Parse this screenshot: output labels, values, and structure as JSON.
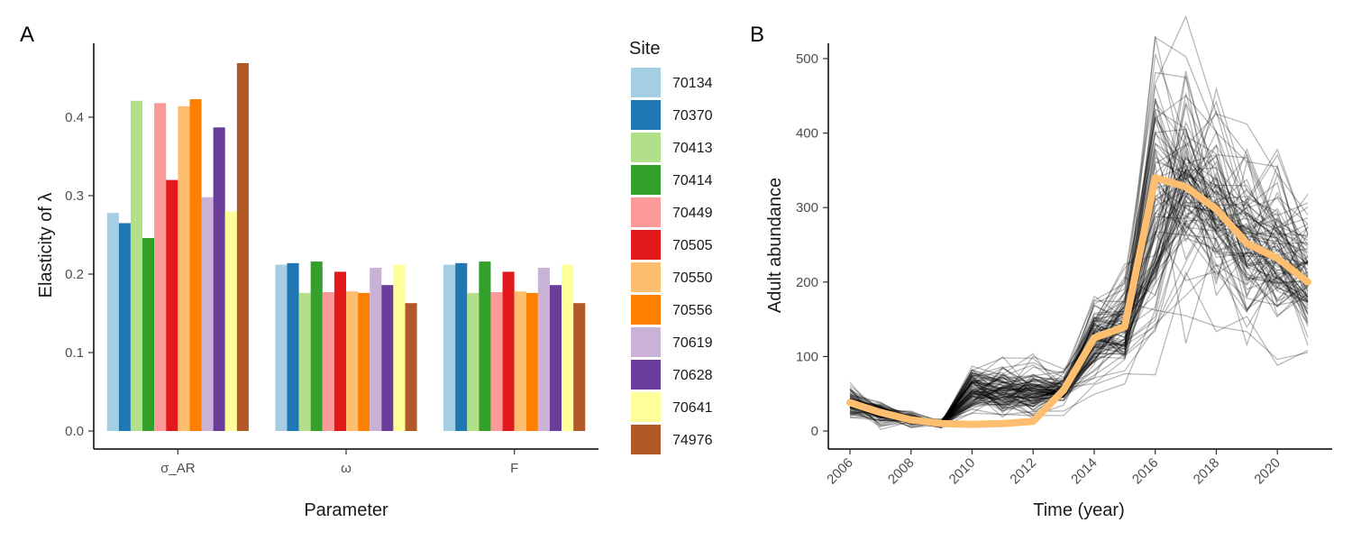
{
  "chart_data": [
    {
      "panel_label": "A",
      "type": "bar",
      "xlabel": "Parameter",
      "ylabel": "Elasticity of λ",
      "ylim": [
        0,
        0.5
      ],
      "yticks": [
        "0.0",
        "0.1",
        "0.2",
        "0.3",
        "0.4"
      ],
      "grid": false,
      "legend_title": "Site",
      "legend_position": "right",
      "categories": [
        "σ_AR",
        "ω",
        "F"
      ],
      "series": [
        {
          "name": "70134",
          "color": "#a6cee3",
          "values": [
            0.278,
            0.212,
            0.212
          ]
        },
        {
          "name": "70370",
          "color": "#1f78b4",
          "values": [
            0.265,
            0.214,
            0.214
          ]
        },
        {
          "name": "70413",
          "color": "#b2df8a",
          "values": [
            0.421,
            0.176,
            0.176
          ]
        },
        {
          "name": "70414",
          "color": "#33a02c",
          "values": [
            0.246,
            0.216,
            0.216
          ]
        },
        {
          "name": "70449",
          "color": "#fb9a99",
          "values": [
            0.418,
            0.177,
            0.177
          ]
        },
        {
          "name": "70505",
          "color": "#e31a1c",
          "values": [
            0.32,
            0.203,
            0.203
          ]
        },
        {
          "name": "70550",
          "color": "#fdbf6f",
          "values": [
            0.414,
            0.178,
            0.178
          ]
        },
        {
          "name": "70556",
          "color": "#ff7f00",
          "values": [
            0.423,
            0.176,
            0.176
          ]
        },
        {
          "name": "70619",
          "color": "#cab2d6",
          "values": [
            0.298,
            0.208,
            0.208
          ]
        },
        {
          "name": "70628",
          "color": "#6a3d9a",
          "values": [
            0.387,
            0.186,
            0.186
          ]
        },
        {
          "name": "70641",
          "color": "#ffff99",
          "values": [
            0.28,
            0.212,
            0.212
          ]
        },
        {
          "name": "74976",
          "color": "#b15928",
          "values": [
            0.469,
            0.163,
            0.163
          ]
        }
      ]
    },
    {
      "panel_label": "B",
      "type": "line",
      "xlabel": "Time (year)",
      "ylabel": "Adult abundance",
      "xlim": [
        2005.5,
        2021.5
      ],
      "ylim": [
        -10,
        510
      ],
      "xticks": [
        "2006",
        "2008",
        "2010",
        "2012",
        "2014",
        "2016",
        "2018",
        "2020"
      ],
      "yticks": [
        "0",
        "100",
        "200",
        "300",
        "400",
        "500"
      ],
      "grid": false,
      "highlight_color": "#fdbf6f",
      "trajectory_color": "#000000",
      "x": [
        2006,
        2007,
        2008,
        2009,
        2010,
        2011,
        2012,
        2013,
        2014,
        2015,
        2016,
        2017,
        2018,
        2019,
        2020,
        2021
      ],
      "highlight_series": {
        "values": [
          38,
          25,
          15,
          10,
          9,
          10,
          13,
          55,
          125,
          140,
          340,
          328,
          298,
          252,
          232,
          200
        ]
      },
      "trajectory_count": 100
    }
  ]
}
